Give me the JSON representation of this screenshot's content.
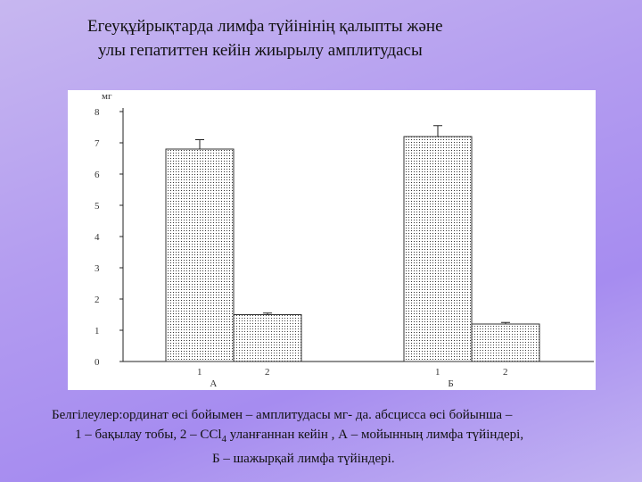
{
  "title": {
    "line1": "Егеуқұйрықтарда лимфа түйінінің қалыпты және",
    "line2": "улы гепатиттен кейін жиырылу амплитудасы"
  },
  "chart_data": {
    "type": "bar",
    "ylabel": "мг",
    "ylim": [
      0,
      8
    ],
    "yticks": [
      "0",
      "1",
      "2",
      "3",
      "4",
      "5",
      "6",
      "7",
      "8"
    ],
    "groups": [
      {
        "label": "А",
        "categories": [
          "1",
          "2"
        ],
        "values": [
          6.8,
          1.5
        ],
        "errors": [
          0.3,
          0.05
        ]
      },
      {
        "label": "Б",
        "categories": [
          "1",
          "2"
        ],
        "values": [
          7.2,
          1.2
        ],
        "errors": [
          0.35,
          0.05
        ]
      }
    ],
    "grid": false
  },
  "caption": {
    "line1": "Белгілеулер:ординат өсі бойымен – амплитудасы мг- да. абсцисса өсі бойынша –",
    "line2a": "1 – бақылау тобы, 2 –  CCl",
    "line2sub": "4",
    "line2b": " уланғаннан кейін , А – мойынның лимфа түйіндері,",
    "line3": "Б – шажырқай лимфа түйіндері."
  }
}
